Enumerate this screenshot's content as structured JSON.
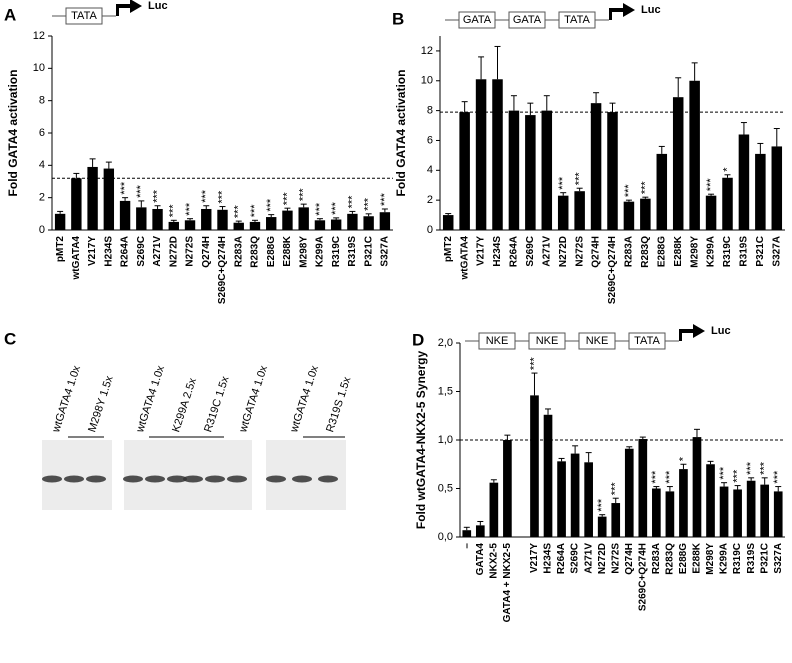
{
  "chart_data": [
    {
      "type": "bar",
      "panel": "A",
      "construct": [
        "TATA"
      ],
      "reporter": "Luc",
      "ylabel": "Fold GATA4 activation",
      "color": "#000000",
      "categories": [
        "pMT2",
        "wtGATA4",
        "V217Y",
        "H234S",
        "R264A",
        "S269C",
        "A271V",
        "N272D",
        "N272S",
        "Q274H",
        "S269C+Q274H",
        "R283A",
        "R283Q",
        "E288G",
        "E288K",
        "M298Y",
        "K299A",
        "R319C",
        "R319S",
        "P321C",
        "S327A"
      ],
      "values": [
        1.0,
        3.2,
        3.9,
        3.8,
        1.8,
        1.4,
        1.3,
        0.5,
        0.6,
        1.3,
        1.25,
        0.45,
        0.5,
        0.8,
        1.2,
        1.4,
        0.6,
        0.65,
        1.0,
        0.85,
        1.1
      ],
      "errors": [
        0.15,
        0.3,
        0.5,
        0.4,
        0.2,
        0.4,
        0.2,
        0.1,
        0.1,
        0.2,
        0.2,
        0.1,
        0.1,
        0.15,
        0.15,
        0.2,
        0.1,
        0.1,
        0.15,
        0.15,
        0.2
      ],
      "annotations": [
        null,
        null,
        null,
        null,
        "***",
        "***",
        "***",
        "***",
        "***",
        "***",
        "***",
        "***",
        "***",
        "***",
        "***",
        "***",
        "***",
        "***",
        "***",
        "***",
        "***"
      ],
      "reference_line": 3.2,
      "ylim": [
        0,
        12
      ],
      "yticks": [
        0,
        2,
        4,
        6,
        8,
        10,
        12
      ]
    },
    {
      "type": "bar",
      "panel": "B",
      "construct": [
        "GATA",
        "GATA",
        "TATA"
      ],
      "reporter": "Luc",
      "ylabel": "Fold GATA4 activation",
      "color": "#000000",
      "categories": [
        "pMT2",
        "wtGATA4",
        "V217Y",
        "H234S",
        "R264A",
        "S269C",
        "A271V",
        "N272D",
        "N272S",
        "Q274H",
        "S269C+Q274H",
        "R283A",
        "R283Q",
        "E288G",
        "E288K",
        "M298Y",
        "K299A",
        "R319C",
        "R319S",
        "P321C",
        "S327A"
      ],
      "values": [
        1.0,
        7.9,
        10.1,
        10.1,
        8.0,
        7.7,
        8.0,
        2.3,
        2.6,
        8.5,
        7.9,
        1.9,
        2.1,
        5.1,
        8.9,
        10.0,
        2.3,
        3.5,
        6.4,
        5.1,
        5.6
      ],
      "errors": [
        0.1,
        0.7,
        1.5,
        2.2,
        1.0,
        0.8,
        1.0,
        0.2,
        0.2,
        0.7,
        0.6,
        0.1,
        0.1,
        0.5,
        1.3,
        1.2,
        0.1,
        0.2,
        0.8,
        0.7,
        1.2
      ],
      "annotations": [
        null,
        null,
        null,
        null,
        null,
        null,
        null,
        "***",
        "***",
        null,
        null,
        "***",
        "***",
        null,
        null,
        null,
        "***",
        "*",
        null,
        null,
        null
      ],
      "reference_line": 7.9,
      "ylim": [
        0,
        13
      ],
      "yticks": [
        0,
        2,
        4,
        6,
        8,
        10,
        12
      ]
    },
    {
      "type": "bar",
      "panel": "D",
      "construct": [
        "NKE",
        "NKE",
        "NKE",
        "TATA"
      ],
      "reporter": "Luc",
      "ylabel": "Fold wtGATA4-NKX2-5 Synergy",
      "color": "#000000",
      "categories": [
        "–",
        "GATA4",
        "NKX2-5",
        "GATA4 + NKX2-5",
        null,
        "V217Y",
        "H234S",
        "R264A",
        "S269C",
        "A271V",
        "N272D",
        "N272S",
        "Q274H",
        "S269C+Q274H",
        "R283A",
        "R283Q",
        "E288G",
        "E288K",
        "M298Y",
        "K299A",
        "R319C",
        "R319S",
        "P321C",
        "S327A"
      ],
      "values": [
        0.07,
        0.12,
        0.56,
        1.0,
        null,
        1.46,
        1.26,
        0.78,
        0.86,
        0.77,
        0.21,
        0.35,
        0.91,
        1.01,
        0.5,
        0.47,
        0.7,
        1.03,
        0.75,
        0.52,
        0.49,
        0.58,
        0.54,
        0.47
      ],
      "errors": [
        0.03,
        0.04,
        0.03,
        0.05,
        null,
        0.23,
        0.06,
        0.03,
        0.08,
        0.1,
        0.02,
        0.05,
        0.02,
        0.02,
        0.02,
        0.05,
        0.05,
        0.08,
        0.03,
        0.04,
        0.04,
        0.03,
        0.07,
        0.05
      ],
      "annotations": [
        null,
        null,
        null,
        null,
        null,
        "***",
        null,
        null,
        null,
        null,
        "***",
        "***",
        null,
        null,
        "***",
        "***",
        "*",
        null,
        null,
        "***",
        "***",
        "***",
        "***",
        "***"
      ],
      "reference_line": 1.0,
      "ylim": [
        0,
        2
      ],
      "yticks": [
        {
          "value": 0,
          "label": "0,0"
        },
        {
          "value": 0.5,
          "label": "0,5"
        },
        {
          "value": 1.0,
          "label": "1,0"
        },
        {
          "value": 1.5,
          "label": "1,5"
        },
        {
          "value": 2.0,
          "label": "2,0"
        }
      ]
    }
  ],
  "blot": {
    "panel": "C",
    "lanes": [
      "wtGATA4 1.0x",
      "M298Y 1.5x",
      "wtGATA4 1.0x",
      "K299A 2.5x",
      "R319C 1.5x",
      "wtGATA4 1.0x",
      "wtGATA4 1.0x",
      "R319S 1.5x"
    ]
  }
}
